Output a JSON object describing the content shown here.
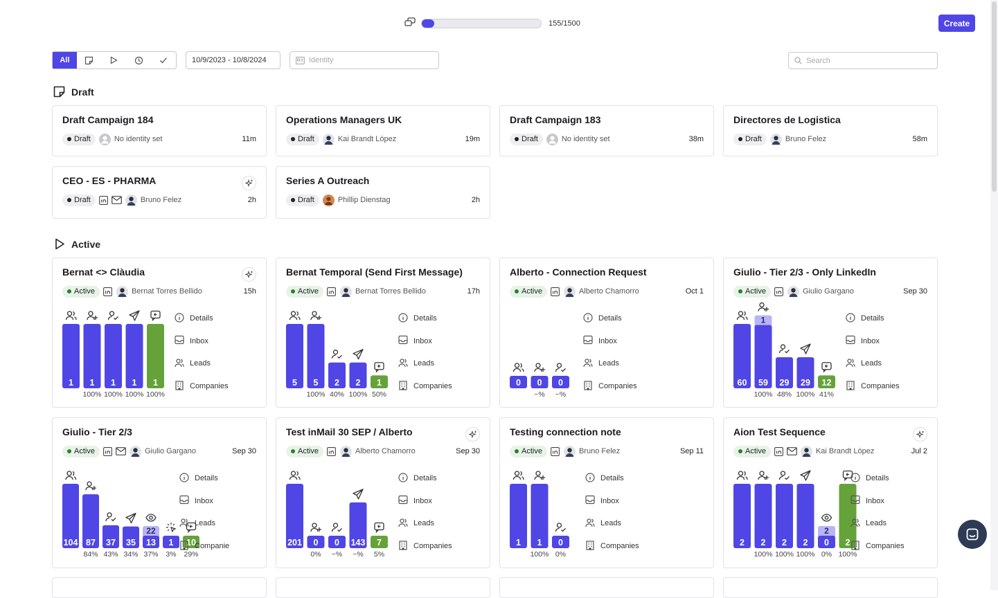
{
  "header": {
    "usage_text": "155/1500",
    "usage_fraction": 0.1033,
    "create_label": "Create"
  },
  "filters": {
    "all_label": "All",
    "date_range": "10/9/2023 - 10/8/2024",
    "identity_placeholder": "Identity",
    "search_placeholder": "Search"
  },
  "sections": {
    "draft": "Draft",
    "active": "Active"
  },
  "link_labels": [
    "Details",
    "Inbox",
    "Leads",
    "Companies"
  ],
  "draft_cards": [
    {
      "title": "Draft Campaign 184",
      "status": "Draft",
      "identity": "No identity set",
      "avatar": "none",
      "time": "11m",
      "channels": [],
      "sparkle": false
    },
    {
      "title": "Operations Managers UK",
      "status": "Draft",
      "identity": "Kai Brandt López",
      "avatar": "person",
      "time": "19m",
      "channels": [],
      "sparkle": false
    },
    {
      "title": "Draft Campaign 183",
      "status": "Draft",
      "identity": "No identity set",
      "avatar": "none",
      "time": "38m",
      "channels": [],
      "sparkle": false
    },
    {
      "title": "Directores de Logistica",
      "status": "Draft",
      "identity": "Bruno Felez",
      "avatar": "person",
      "time": "58m",
      "channels": [],
      "sparkle": false
    },
    {
      "title": "CEO - ES - PHARMA",
      "status": "Draft",
      "identity": "Bruno Felez",
      "avatar": "person",
      "time": "2h",
      "channels": [
        "linkedin",
        "mail"
      ],
      "sparkle": true
    },
    {
      "title": "Series A Outreach",
      "status": "Draft",
      "identity": "Phillip Dienstag",
      "avatar": "orange",
      "time": "2h",
      "channels": [],
      "sparkle": false
    }
  ],
  "active_cards": [
    {
      "title": "Bernat <> Clàudia",
      "status": "Active",
      "identity": "Bernat Torres Bellido",
      "avatar": "person",
      "time": "15h",
      "channels": [
        "linkedin"
      ],
      "sparkle": true,
      "links_label_last": "Companies",
      "chart": {
        "steps": [
          {
            "icon": "people",
            "value": "1",
            "level": 1,
            "pct": "",
            "color": "blue"
          },
          {
            "icon": "user-plus",
            "value": "1",
            "level": 1,
            "pct": "100%",
            "color": "blue"
          },
          {
            "icon": "user-check",
            "value": "1",
            "level": 1,
            "pct": "100%",
            "color": "blue"
          },
          {
            "icon": "send",
            "value": "1",
            "level": 1,
            "pct": "100%",
            "color": "blue"
          },
          {
            "icon": "reply",
            "value": "1",
            "level": 1,
            "pct": "100%",
            "color": "green"
          }
        ]
      }
    },
    {
      "title": "Bernat Temporal (Send First Message)",
      "status": "Active",
      "identity": "Bernat Torres Bellido",
      "avatar": "person",
      "time": "17h",
      "channels": [
        "linkedin"
      ],
      "sparkle": false,
      "links_label_last": "Companies",
      "chart": {
        "steps": [
          {
            "icon": "people",
            "value": "5",
            "level": 1,
            "pct": "",
            "color": "blue"
          },
          {
            "icon": "user-plus",
            "value": "5",
            "level": 1,
            "pct": "100%",
            "color": "blue"
          },
          {
            "icon": "user-check",
            "value": "2",
            "level": 0.4,
            "pct": "40%",
            "color": "blue"
          },
          {
            "icon": "send",
            "value": "2",
            "level": 0.4,
            "pct": "100%",
            "color": "blue"
          },
          {
            "icon": "reply",
            "value": "1",
            "level": 0.2,
            "pct": "50%",
            "color": "green"
          }
        ]
      }
    },
    {
      "title": "Alberto - Connection Request",
      "status": "Active",
      "identity": "Alberto Chamorro",
      "avatar": "person",
      "time": "Oct 1",
      "channels": [
        "linkedin"
      ],
      "sparkle": false,
      "links_label_last": "Companies",
      "chart": {
        "steps": [
          {
            "icon": "people",
            "value": "0",
            "level": 0,
            "pct": "",
            "color": "blue"
          },
          {
            "icon": "user-plus",
            "value": "0",
            "level": 0,
            "pct": "~%",
            "color": "blue"
          },
          {
            "icon": "user-check",
            "value": "0",
            "level": 0,
            "pct": "~%",
            "color": "blue"
          }
        ]
      }
    },
    {
      "title": "Giulio - Tier 2/3 - Only LinkedIn",
      "status": "Active",
      "identity": "Giulio Gargano",
      "avatar": "person",
      "time": "Sep 30",
      "channels": [
        "linkedin"
      ],
      "sparkle": false,
      "links_label_last": "Companies",
      "chart": {
        "steps": [
          {
            "icon": "people",
            "value": "60",
            "level": 1,
            "pct": "",
            "color": "blue"
          },
          {
            "icon": "user-plus",
            "value": "59",
            "level": 0.983,
            "pct": "100%",
            "color": "blue",
            "pending": "1"
          },
          {
            "icon": "user-check",
            "value": "29",
            "level": 0.483,
            "pct": "48%",
            "color": "blue"
          },
          {
            "icon": "send",
            "value": "29",
            "level": 0.483,
            "pct": "100%",
            "color": "blue"
          },
          {
            "icon": "reply",
            "value": "12",
            "level": 0.2,
            "pct": "41%",
            "color": "green"
          }
        ]
      }
    },
    {
      "title": "Giulio - Tier 2/3",
      "status": "Active",
      "identity": "Giulio Gargano",
      "avatar": "person",
      "time": "Sep 30",
      "channels": [
        "linkedin",
        "mail"
      ],
      "sparkle": false,
      "links_label_last": "Companie",
      "chart": {
        "steps": [
          {
            "icon": "people",
            "value": "104",
            "level": 1,
            "pct": "",
            "color": "blue"
          },
          {
            "icon": "user-plus",
            "value": "87",
            "level": 0.837,
            "pct": "84%",
            "color": "blue"
          },
          {
            "icon": "user-check",
            "value": "37",
            "level": 0.356,
            "pct": "43%",
            "color": "blue"
          },
          {
            "icon": "send",
            "value": "35",
            "level": 0.337,
            "pct": "34%",
            "color": "blue"
          },
          {
            "icon": "eye",
            "value": "13",
            "level": 0.125,
            "pct": "37%",
            "color": "blue",
            "pending": "22"
          },
          {
            "icon": "click",
            "value": "1",
            "level": 0.01,
            "pct": "3%",
            "color": "blue"
          },
          {
            "icon": "reply",
            "value": "10",
            "level": 0.096,
            "pct": "29%",
            "color": "green"
          }
        ]
      }
    },
    {
      "title": "Test inMail 30 SEP / Alberto",
      "status": "Active",
      "identity": "Alberto Chamorro",
      "avatar": "person",
      "time": "Sep 30",
      "channels": [
        "linkedin"
      ],
      "sparkle": true,
      "links_label_last": "Companies",
      "chart": {
        "steps": [
          {
            "icon": "people",
            "value": "201",
            "level": 1,
            "pct": "",
            "color": "blue"
          },
          {
            "icon": "user-plus",
            "value": "0",
            "level": 0,
            "pct": "0%",
            "color": "blue"
          },
          {
            "icon": "user-check",
            "value": "0",
            "level": 0,
            "pct": "~%",
            "color": "blue"
          },
          {
            "icon": "send",
            "value": "143",
            "level": 0.711,
            "pct": "~%",
            "color": "blue"
          },
          {
            "icon": "reply",
            "value": "7",
            "level": 0.035,
            "pct": "5%",
            "color": "green"
          }
        ]
      }
    },
    {
      "title": "Testing connection note",
      "status": "Active",
      "identity": "Bruno Felez",
      "avatar": "person",
      "time": "Sep 11",
      "channels": [
        "linkedin"
      ],
      "sparkle": false,
      "links_label_last": "Companies",
      "chart": {
        "steps": [
          {
            "icon": "people",
            "value": "1",
            "level": 1,
            "pct": "",
            "color": "blue"
          },
          {
            "icon": "user-plus",
            "value": "1",
            "level": 1,
            "pct": "100%",
            "color": "blue"
          },
          {
            "icon": "user-check",
            "value": "0",
            "level": 0,
            "pct": "0%",
            "color": "blue"
          }
        ]
      }
    },
    {
      "title": "Aion Test Sequence",
      "status": "Active",
      "identity": "Kai Brandt López",
      "avatar": "person",
      "time": "Jul 2",
      "channels": [
        "linkedin",
        "mail"
      ],
      "sparkle": true,
      "links_label_last": "Companies",
      "chart": {
        "steps": [
          {
            "icon": "people",
            "value": "2",
            "level": 1,
            "pct": "",
            "color": "blue"
          },
          {
            "icon": "user-plus",
            "value": "2",
            "level": 1,
            "pct": "100%",
            "color": "blue"
          },
          {
            "icon": "user-check",
            "value": "2",
            "level": 1,
            "pct": "100%",
            "color": "blue"
          },
          {
            "icon": "send",
            "value": "2",
            "level": 1,
            "pct": "100%",
            "color": "blue"
          },
          {
            "icon": "eye",
            "value": "0",
            "level": 0,
            "pct": "0%",
            "color": "blue",
            "pending": "2"
          },
          {
            "icon": "reply",
            "value": "2",
            "level": 1,
            "pct": "100%",
            "color": "green"
          }
        ]
      }
    }
  ]
}
